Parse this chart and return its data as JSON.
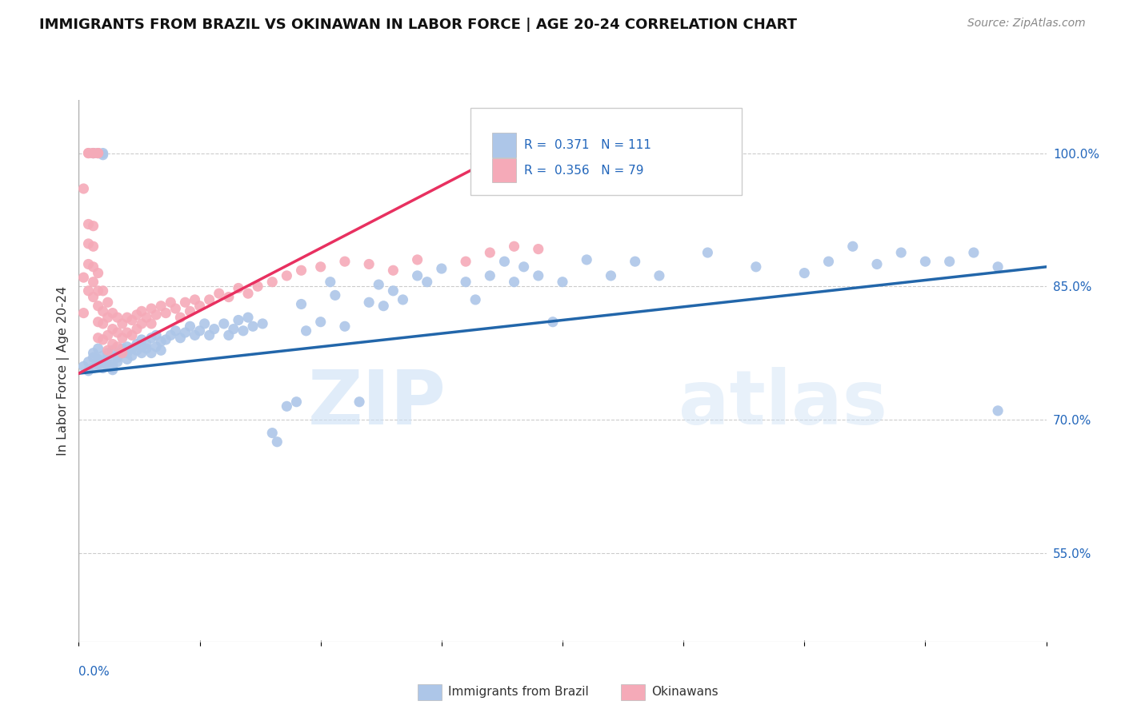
{
  "title": "IMMIGRANTS FROM BRAZIL VS OKINAWAN IN LABOR FORCE | AGE 20-24 CORRELATION CHART",
  "source": "Source: ZipAtlas.com",
  "ylabel": "In Labor Force | Age 20-24",
  "ytick_labels": [
    "55.0%",
    "70.0%",
    "85.0%",
    "100.0%"
  ],
  "ytick_values": [
    0.55,
    0.7,
    0.85,
    1.0
  ],
  "legend_brazil_R": "0.371",
  "legend_brazil_N": "111",
  "legend_okinawa_R": "0.356",
  "legend_okinawa_N": "79",
  "brazil_color": "#adc6e8",
  "brazil_line_color": "#2266aa",
  "okinawa_color": "#f5aab8",
  "okinawa_line_color": "#e83060",
  "watermark_zip": "ZIP",
  "watermark_atlas": "atlas",
  "background_color": "#ffffff",
  "x_min": 0.0,
  "x_max": 0.2,
  "y_min": 0.45,
  "y_max": 1.06,
  "brazil_scatter_x": [
    0.001,
    0.002,
    0.002,
    0.003,
    0.003,
    0.003,
    0.004,
    0.004,
    0.004,
    0.005,
    0.005,
    0.005,
    0.006,
    0.006,
    0.006,
    0.007,
    0.007,
    0.007,
    0.008,
    0.008,
    0.008,
    0.009,
    0.009,
    0.01,
    0.01,
    0.01,
    0.011,
    0.011,
    0.012,
    0.012,
    0.013,
    0.013,
    0.013,
    0.014,
    0.014,
    0.015,
    0.015,
    0.016,
    0.016,
    0.017,
    0.017,
    0.018,
    0.019,
    0.02,
    0.021,
    0.022,
    0.023,
    0.024,
    0.025,
    0.026,
    0.027,
    0.028,
    0.03,
    0.031,
    0.032,
    0.033,
    0.034,
    0.035,
    0.036,
    0.038,
    0.04,
    0.041,
    0.043,
    0.045,
    0.046,
    0.047,
    0.05,
    0.052,
    0.053,
    0.055,
    0.058,
    0.06,
    0.062,
    0.063,
    0.065,
    0.067,
    0.07,
    0.072,
    0.075,
    0.08,
    0.082,
    0.085,
    0.088,
    0.09,
    0.092,
    0.095,
    0.098,
    0.1,
    0.105,
    0.11,
    0.115,
    0.12,
    0.13,
    0.14,
    0.15,
    0.155,
    0.16,
    0.165,
    0.17,
    0.175,
    0.18,
    0.185,
    0.19,
    0.003,
    0.003,
    0.004,
    0.005,
    0.005,
    0.006,
    0.007,
    0.19
  ],
  "brazil_scatter_y": [
    0.76,
    0.755,
    0.765,
    0.77,
    0.758,
    0.775,
    0.768,
    0.78,
    0.762,
    0.772,
    0.758,
    0.765,
    0.77,
    0.775,
    0.762,
    0.778,
    0.762,
    0.756,
    0.772,
    0.765,
    0.77,
    0.78,
    0.775,
    0.782,
    0.768,
    0.775,
    0.78,
    0.772,
    0.778,
    0.785,
    0.775,
    0.782,
    0.79,
    0.78,
    0.785,
    0.775,
    0.792,
    0.782,
    0.795,
    0.788,
    0.778,
    0.79,
    0.795,
    0.8,
    0.792,
    0.798,
    0.805,
    0.795,
    0.8,
    0.808,
    0.795,
    0.802,
    0.808,
    0.795,
    0.802,
    0.812,
    0.8,
    0.815,
    0.805,
    0.808,
    0.685,
    0.675,
    0.715,
    0.72,
    0.83,
    0.8,
    0.81,
    0.855,
    0.84,
    0.805,
    0.72,
    0.832,
    0.852,
    0.828,
    0.845,
    0.835,
    0.862,
    0.855,
    0.87,
    0.855,
    0.835,
    0.862,
    0.878,
    0.855,
    0.872,
    0.862,
    0.81,
    0.855,
    0.88,
    0.862,
    0.878,
    0.862,
    0.888,
    0.872,
    0.865,
    0.878,
    0.895,
    0.875,
    0.888,
    0.878,
    0.878,
    0.888,
    0.872,
    1.0,
    1.0,
    1.0,
    1.0,
    0.998,
    0.76,
    0.758,
    0.71
  ],
  "okinawa_scatter_x": [
    0.001,
    0.001,
    0.001,
    0.002,
    0.002,
    0.002,
    0.002,
    0.003,
    0.003,
    0.003,
    0.003,
    0.003,
    0.004,
    0.004,
    0.004,
    0.004,
    0.004,
    0.005,
    0.005,
    0.005,
    0.005,
    0.006,
    0.006,
    0.006,
    0.006,
    0.007,
    0.007,
    0.007,
    0.008,
    0.008,
    0.008,
    0.009,
    0.009,
    0.009,
    0.01,
    0.01,
    0.011,
    0.011,
    0.012,
    0.012,
    0.013,
    0.013,
    0.014,
    0.015,
    0.015,
    0.016,
    0.017,
    0.018,
    0.019,
    0.02,
    0.021,
    0.022,
    0.023,
    0.024,
    0.025,
    0.027,
    0.029,
    0.031,
    0.033,
    0.035,
    0.037,
    0.04,
    0.043,
    0.046,
    0.05,
    0.055,
    0.06,
    0.065,
    0.07,
    0.08,
    0.085,
    0.09,
    0.095,
    0.002,
    0.002,
    0.003,
    0.003,
    0.004,
    0.004
  ],
  "okinawa_scatter_y": [
    0.82,
    0.86,
    0.96,
    0.875,
    0.92,
    0.898,
    0.845,
    0.918,
    0.895,
    0.872,
    0.855,
    0.838,
    0.865,
    0.845,
    0.828,
    0.81,
    0.792,
    0.845,
    0.822,
    0.808,
    0.79,
    0.832,
    0.815,
    0.795,
    0.778,
    0.82,
    0.802,
    0.785,
    0.815,
    0.798,
    0.782,
    0.808,
    0.792,
    0.775,
    0.815,
    0.798,
    0.812,
    0.795,
    0.818,
    0.802,
    0.822,
    0.808,
    0.815,
    0.825,
    0.808,
    0.818,
    0.828,
    0.82,
    0.832,
    0.825,
    0.815,
    0.832,
    0.822,
    0.835,
    0.828,
    0.835,
    0.842,
    0.838,
    0.848,
    0.842,
    0.85,
    0.855,
    0.862,
    0.868,
    0.872,
    0.878,
    0.875,
    0.868,
    0.88,
    0.878,
    0.888,
    0.895,
    0.892,
    1.0,
    1.0,
    1.0,
    1.0,
    1.0,
    1.0
  ],
  "brazil_trendline_x": [
    0.0,
    0.2
  ],
  "brazil_trendline_y": [
    0.752,
    0.872
  ],
  "okinawa_trendline_x": [
    0.0,
    0.095
  ],
  "okinawa_trendline_y": [
    0.752,
    1.02
  ]
}
